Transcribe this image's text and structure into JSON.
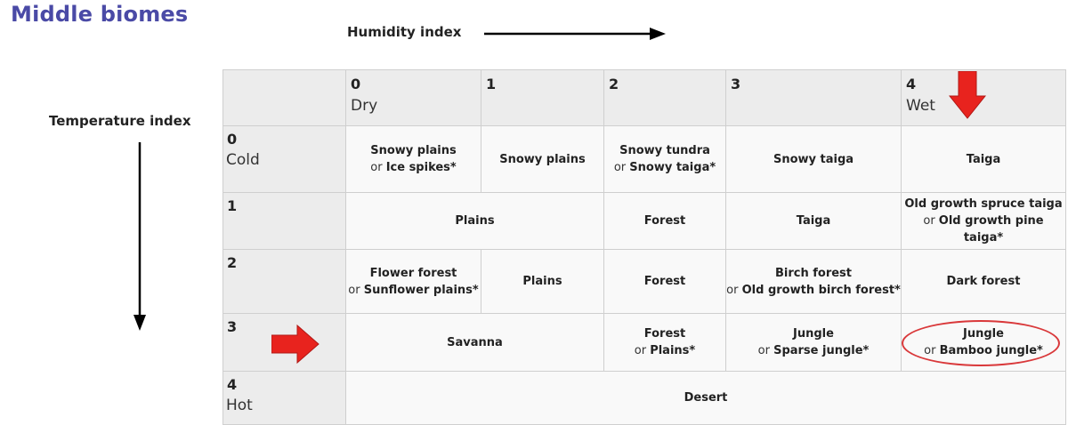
{
  "title": "Middle biomes",
  "humidity_label": "Humidity index",
  "temperature_label": "Temperature index",
  "columns": [
    {
      "num": "0",
      "label": "Dry"
    },
    {
      "num": "1",
      "label": ""
    },
    {
      "num": "2",
      "label": ""
    },
    {
      "num": "3",
      "label": ""
    },
    {
      "num": "4",
      "label": "Wet"
    }
  ],
  "rows": [
    {
      "num": "0",
      "label": "Cold"
    },
    {
      "num": "1",
      "label": ""
    },
    {
      "num": "2",
      "label": ""
    },
    {
      "num": "3",
      "label": ""
    },
    {
      "num": "4",
      "label": "Hot"
    }
  ],
  "biomes": {
    "r0c0": {
      "main": "Snowy plains",
      "or_prefix": "or ",
      "alt": "Ice spikes*"
    },
    "r0c1": {
      "main": "Snowy plains"
    },
    "r0c2": {
      "main": "Snowy tundra",
      "or_prefix": "or ",
      "alt": "Snowy taiga*"
    },
    "r0c3": {
      "main": "Snowy taiga"
    },
    "r0c4": {
      "main": "Taiga"
    },
    "r1c01": {
      "main": "Plains"
    },
    "r1c2": {
      "main": "Forest"
    },
    "r1c3": {
      "main": "Taiga"
    },
    "r1c4": {
      "main": "Old growth spruce taiga",
      "or_prefix": "or ",
      "alt": "Old growth pine taiga*"
    },
    "r2c0": {
      "main": "Flower forest",
      "or_prefix": "or ",
      "alt": "Sunflower plains*"
    },
    "r2c1": {
      "main": "Plains"
    },
    "r2c2": {
      "main": "Forest"
    },
    "r2c3": {
      "main": "Birch forest",
      "or_prefix": "or ",
      "alt": "Old growth birch forest*"
    },
    "r2c4": {
      "main": "Dark forest"
    },
    "r3c01": {
      "main": "Savanna"
    },
    "r3c2": {
      "main": "Forest",
      "or_prefix": "or ",
      "alt": "Plains*"
    },
    "r3c3": {
      "main": "Jungle",
      "or_prefix": "or ",
      "alt": "Sparse jungle*"
    },
    "r3c4": {
      "main": "Jungle",
      "or_prefix": "or ",
      "alt": "Bamboo jungle*"
    },
    "r4all": {
      "main": "Desert"
    }
  },
  "colors": {
    "title": "#4a4aa6",
    "highlight_red": "#e8231e",
    "oval": "#d9383a",
    "header_bg": "#ececec",
    "cell_bg": "#f9f9f9"
  },
  "highlights": {
    "arrow_down_column": "4",
    "arrow_right_row": "3",
    "circled_cell": "r3c4"
  }
}
